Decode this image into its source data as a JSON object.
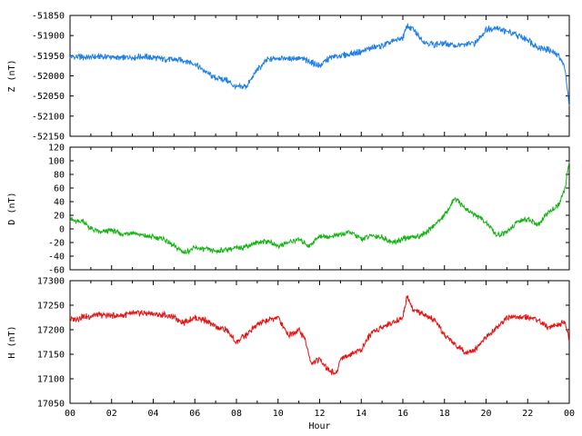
{
  "chart_data": {
    "type": "line",
    "xlabel": "Hour",
    "x_ticks": [
      "00",
      "02",
      "04",
      "06",
      "08",
      "10",
      "12",
      "14",
      "16",
      "18",
      "20",
      "22",
      "00"
    ],
    "xlim": [
      0,
      24
    ],
    "grid": false,
    "panels": [
      {
        "name": "Z",
        "ylabel": "Z (nT)",
        "ylim": [
          -52150,
          -51850
        ],
        "yticks": [
          -52150,
          -52100,
          -52050,
          -52000,
          -51950,
          -51900,
          -51850
        ],
        "y_tick_labels": [
          "-52150",
          "-52100",
          "-52050",
          "-52000",
          "-51950",
          "-51900",
          "-51850"
        ],
        "color": "#1e7fe6",
        "noise": 3,
        "x": [
          0,
          0.5,
          1,
          1.5,
          2,
          2.5,
          3,
          3.5,
          4,
          4.5,
          5,
          5.5,
          6,
          6.5,
          7,
          7.5,
          8,
          8.5,
          9,
          9.5,
          10,
          10.5,
          11,
          11.5,
          12,
          12.5,
          13,
          13.5,
          14,
          14.5,
          15,
          15.5,
          16,
          16.2,
          16.5,
          17,
          17.5,
          18,
          18.5,
          19,
          19.5,
          20,
          20.5,
          21,
          21.5,
          22,
          22.5,
          23,
          23.5,
          23.8,
          24
        ],
        "y": [
          -51955,
          -51953,
          -51954,
          -51952,
          -51953,
          -51956,
          -51953,
          -51952,
          -51955,
          -51958,
          -51960,
          -51962,
          -51970,
          -51990,
          -52005,
          -52010,
          -52030,
          -52025,
          -51985,
          -51960,
          -51955,
          -51958,
          -51955,
          -51965,
          -51975,
          -51955,
          -51950,
          -51945,
          -51940,
          -51930,
          -51925,
          -51915,
          -51905,
          -51875,
          -51885,
          -51915,
          -51922,
          -51920,
          -51925,
          -51923,
          -51918,
          -51885,
          -51880,
          -51890,
          -51900,
          -51910,
          -51930,
          -51935,
          -51950,
          -51980,
          -52080
        ]
      },
      {
        "name": "D",
        "ylabel": "D (nT)",
        "ylim": [
          -60,
          120
        ],
        "yticks": [
          -60,
          -40,
          -20,
          0,
          20,
          40,
          60,
          80,
          100,
          120
        ],
        "y_tick_labels": [
          "-60",
          "-40",
          "-20",
          "0",
          "20",
          "40",
          "60",
          "80",
          "100",
          "120"
        ],
        "color": "#14b414",
        "noise": 2.5,
        "x": [
          0,
          0.3,
          0.6,
          1,
          1.5,
          2,
          2.5,
          3,
          3.5,
          4,
          4.5,
          5,
          5.5,
          6,
          6.5,
          7,
          7.5,
          8,
          8.5,
          9,
          9.5,
          10,
          10.5,
          11,
          11.5,
          12,
          12.5,
          13,
          13.5,
          14,
          14.5,
          15,
          15.5,
          16,
          16.5,
          17,
          17.5,
          18,
          18.5,
          19,
          19.5,
          20,
          20.5,
          21,
          21.5,
          22,
          22.5,
          23,
          23.5,
          23.8,
          24
        ],
        "y": [
          15,
          10,
          12,
          0,
          -5,
          -2,
          -8,
          -5,
          -10,
          -12,
          -15,
          -25,
          -35,
          -28,
          -30,
          -33,
          -30,
          -28,
          -25,
          -20,
          -18,
          -25,
          -20,
          -15,
          -25,
          -10,
          -12,
          -8,
          -5,
          -15,
          -10,
          -12,
          -20,
          -15,
          -12,
          -8,
          5,
          20,
          45,
          30,
          20,
          10,
          -10,
          -5,
          10,
          15,
          5,
          25,
          35,
          60,
          100
        ]
      },
      {
        "name": "H",
        "ylabel": "H (nT)",
        "ylim": [
          17050,
          17300
        ],
        "yticks": [
          17050,
          17100,
          17150,
          17200,
          17250,
          17300
        ],
        "y_tick_labels": [
          "17050",
          "17100",
          "17150",
          "17200",
          "17250",
          "17300"
        ],
        "color": "#e61414",
        "noise": 3,
        "x": [
          0,
          0.5,
          1,
          1.5,
          2,
          2.5,
          3,
          3.5,
          4,
          4.5,
          5,
          5.5,
          6,
          6.5,
          7,
          7.5,
          8,
          8.5,
          9,
          9.5,
          10,
          10.5,
          11,
          11.3,
          11.6,
          12,
          12.4,
          12.8,
          13,
          13.5,
          14,
          14.5,
          15,
          15.5,
          16,
          16.2,
          16.5,
          17,
          17.5,
          18,
          18.5,
          19,
          19.5,
          20,
          20.5,
          21,
          21.5,
          22,
          22.5,
          23,
          23.5,
          23.8,
          24
        ],
        "y": [
          17220,
          17225,
          17228,
          17230,
          17228,
          17230,
          17232,
          17235,
          17232,
          17230,
          17225,
          17215,
          17225,
          17220,
          17205,
          17200,
          17175,
          17190,
          17210,
          17220,
          17225,
          17190,
          17200,
          17180,
          17130,
          17140,
          17120,
          17110,
          17140,
          17150,
          17160,
          17195,
          17205,
          17215,
          17225,
          17270,
          17240,
          17230,
          17220,
          17190,
          17170,
          17155,
          17160,
          17185,
          17205,
          17225,
          17225,
          17225,
          17220,
          17205,
          17210,
          17215,
          17180
        ]
      }
    ]
  }
}
